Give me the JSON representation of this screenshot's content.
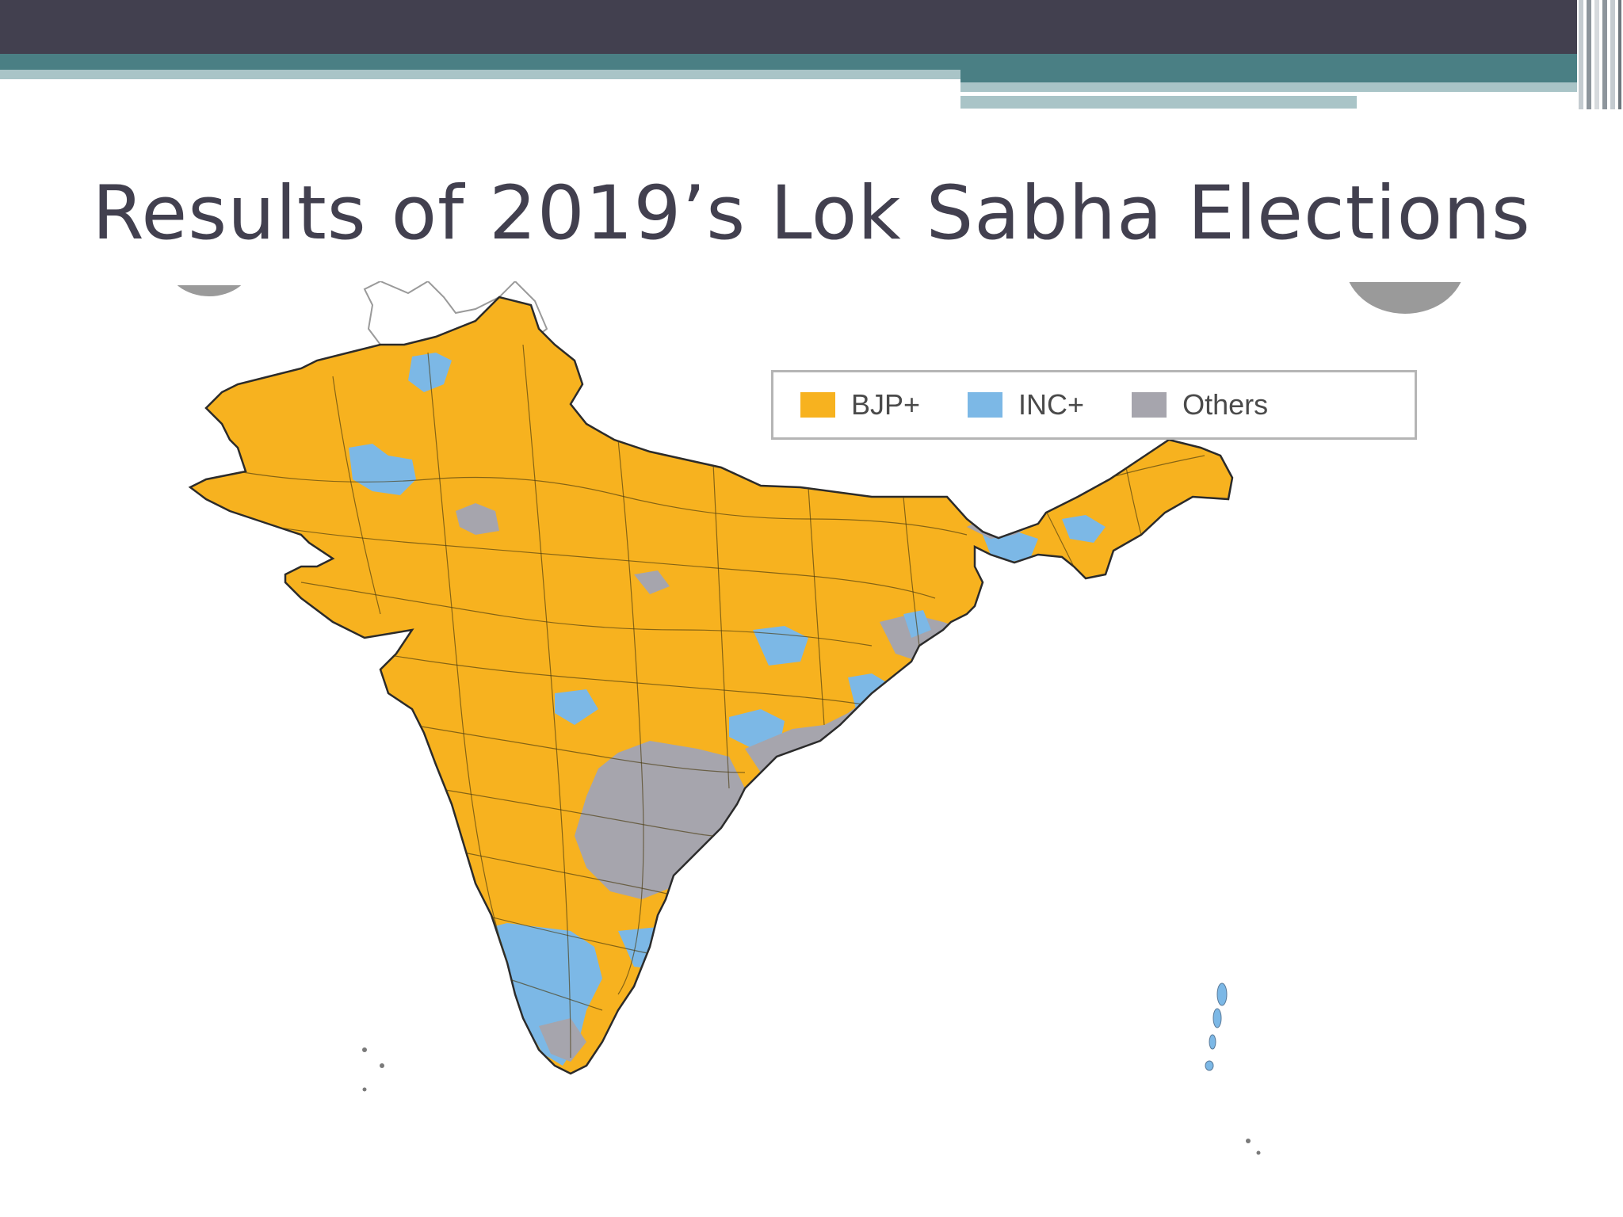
{
  "slide": {
    "title": "Results of 2019’s Lok Sabha Elections"
  },
  "legend": {
    "items": [
      {
        "label": "BJP+",
        "color": "#f7b21f"
      },
      {
        "label": "INC+",
        "color": "#7cb8e6"
      },
      {
        "label": "Others",
        "color": "#a6a5ad"
      }
    ]
  },
  "colors": {
    "header": "#42404f",
    "accent_teal": "#4a7f84",
    "accent_light": "#a9c4c7",
    "title_text": "#42404f",
    "border": "#2b2b2b"
  }
}
